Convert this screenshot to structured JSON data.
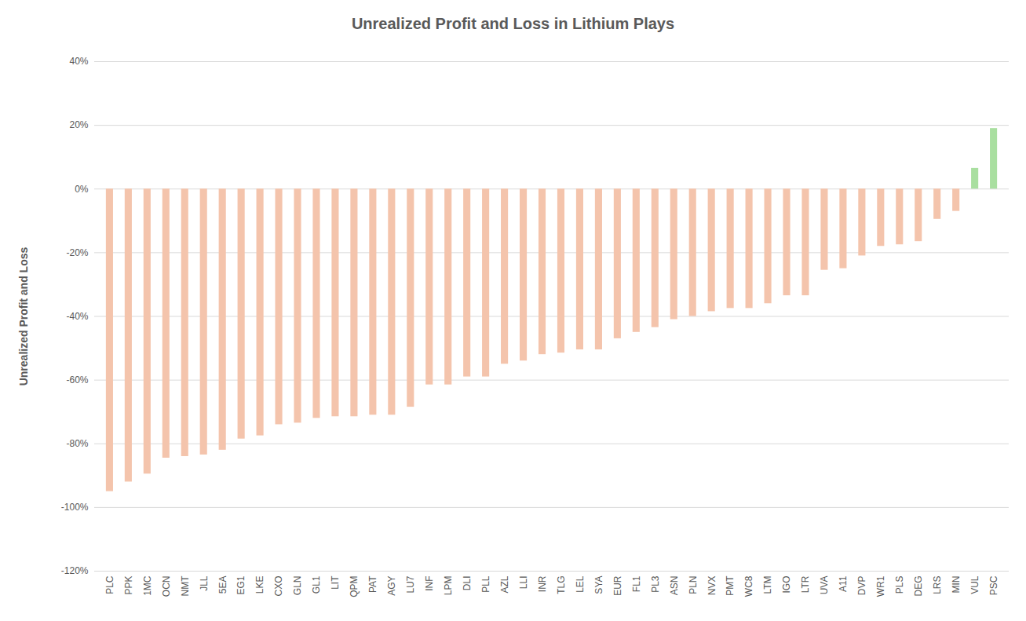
{
  "chart_data": {
    "type": "bar",
    "title": "Unrealized Profit and Loss in Lithium Plays",
    "y_label": "Unrealized Profit and Loss",
    "categories": [
      "PLC",
      "PPK",
      "1MC",
      "OCN",
      "NMT",
      "JLL",
      "5EA",
      "EG1",
      "LKE",
      "CXO",
      "GLN",
      "GL1",
      "LIT",
      "QPM",
      "PAT",
      "AGY",
      "LU7",
      "INF",
      "LPM",
      "DLI",
      "PLL",
      "AZL",
      "LLI",
      "INR",
      "TLG",
      "LEL",
      "SYA",
      "EUR",
      "FL1",
      "PL3",
      "ASN",
      "PLN",
      "NVX",
      "PMT",
      "WC8",
      "LTM",
      "IGO",
      "LTR",
      "UVA",
      "A11",
      "DVP",
      "WR1",
      "PLS",
      "DEG",
      "LRS",
      "MIN",
      "VUL",
      "PSC"
    ],
    "values": [
      -95,
      -92,
      -89.5,
      -84.5,
      -84,
      -83.5,
      -82,
      -78.5,
      -77.5,
      -74,
      -73.5,
      -72,
      -71.5,
      -71.5,
      -71,
      -71,
      -68.5,
      -61.5,
      -61.5,
      -59,
      -59,
      -55,
      -54,
      -52,
      -51.5,
      -50.5,
      -50.5,
      -47,
      -45,
      -43.5,
      -41,
      -40,
      -38.5,
      -37.5,
      -37.5,
      -36,
      -33.5,
      -33.5,
      -25.5,
      -25,
      -21,
      -18,
      -17.5,
      -16.5,
      -9.5,
      -7,
      6.5,
      19
    ],
    "colors": [
      "#f4c4ac",
      "#f4c4ac",
      "#f4c4ac",
      "#f4c4ac",
      "#f4c4ac",
      "#f4c4ac",
      "#f4c4ac",
      "#f4c4ac",
      "#f4c4ac",
      "#f4c4ac",
      "#f4c4ac",
      "#f4c4ac",
      "#f4c4ac",
      "#f4c4ac",
      "#f4c4ac",
      "#f4c4ac",
      "#f4c4ac",
      "#f4c4ac",
      "#f4c4ac",
      "#f4c4ac",
      "#f4c4ac",
      "#f4c4ac",
      "#f4c4ac",
      "#f4c4ac",
      "#f4c4ac",
      "#f4c4ac",
      "#f4c4ac",
      "#f4c4ac",
      "#f4c4ac",
      "#f4c4ac",
      "#f4c4ac",
      "#f4c4ac",
      "#f4c4ac",
      "#f4c4ac",
      "#f4c4ac",
      "#f4c4ac",
      "#f4c4ac",
      "#f4c4ac",
      "#f4c4ac",
      "#f4c4ac",
      "#f4c4ac",
      "#f4c4ac",
      "#f4c4ac",
      "#f4c4ac",
      "#f4c4ac",
      "#f4c4ac",
      "#a9dfa0",
      "#a9dfa0"
    ],
    "ylim": [
      -120,
      40
    ],
    "yticks": [
      {
        "value": -120,
        "label": "-120%"
      },
      {
        "value": -100,
        "label": "-100%"
      },
      {
        "value": -80,
        "label": "-80%"
      },
      {
        "value": -60,
        "label": "-60%"
      },
      {
        "value": -40,
        "label": "-40%"
      },
      {
        "value": -20,
        "label": "-20%"
      },
      {
        "value": 0,
        "label": "0%"
      },
      {
        "value": 20,
        "label": "20%"
      },
      {
        "value": 40,
        "label": "40%"
      }
    ],
    "grid": true
  }
}
